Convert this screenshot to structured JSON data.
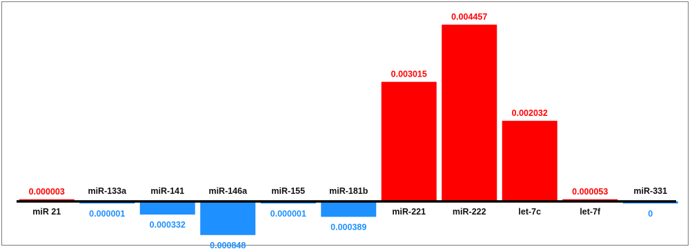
{
  "chart_data": {
    "type": "bar",
    "title": "",
    "xlabel": "",
    "ylabel": "",
    "grid": false,
    "legend": "none",
    "categories": [
      "miR 21",
      "miR-133a",
      "miR-141",
      "miR-146a",
      "miR-155",
      "miR-181b",
      "miR-221",
      "miR-222",
      "let-7c",
      "let-7f",
      "miR-331"
    ],
    "values": [
      3e-06,
      -1e-06,
      -0.000332,
      -0.000848,
      -1e-06,
      -0.000389,
      0.003015,
      0.004457,
      0.002032,
      5.3e-05,
      0
    ],
    "value_labels": [
      "0.000003",
      "0.000001",
      "0.000332",
      "0.000848",
      "0.000001",
      "0.000389",
      "0.003015",
      "0.004457",
      "0.002032",
      "0.000053",
      "0"
    ],
    "colors": {
      "positive": "#ff0000",
      "negative": "#1e90ff",
      "baseline": "#000000"
    }
  }
}
